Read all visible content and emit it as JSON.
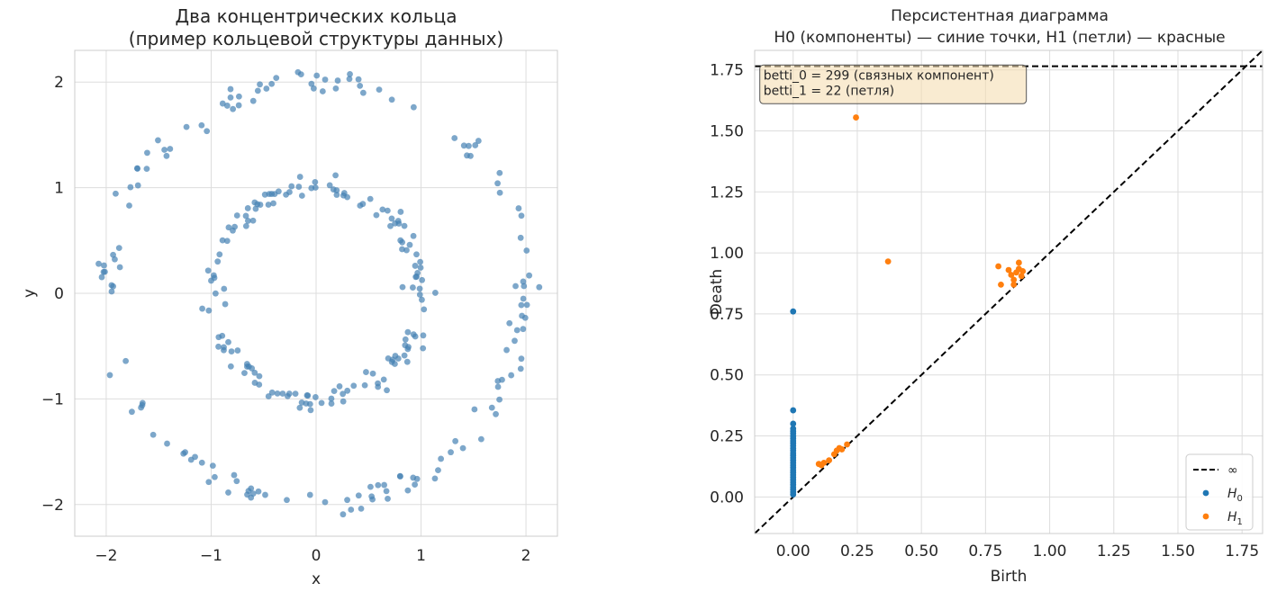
{
  "chart_data": [
    {
      "type": "scatter",
      "title": "Два концентрических кольца\n(пример кольцевой структуры данных)",
      "xlabel": "x",
      "ylabel": "y",
      "xlim": [
        -2.3,
        2.3
      ],
      "ylim": [
        -2.3,
        2.3
      ],
      "xticks": [
        -2,
        -1,
        0,
        1,
        2
      ],
      "yticks": [
        -2,
        -1,
        0,
        1,
        2
      ],
      "xtick_labels": [
        "−2",
        "−1",
        "0",
        "1",
        "2"
      ],
      "ytick_labels": [
        "−2",
        "−1",
        "0",
        "1",
        "2"
      ],
      "grid": true,
      "point_color": "#4682b4",
      "rings": [
        {
          "radius": 2.0,
          "approx_points": 150,
          "noise": 0.06
        },
        {
          "radius": 1.0,
          "approx_points": 150,
          "noise": 0.05
        }
      ]
    },
    {
      "type": "scatter",
      "title": "Персистентная диаграмма\nH0 (компоненты) — синие точки, H1 (петли) — красные",
      "xlabel": "Birth",
      "ylabel": "Death",
      "xlim": [
        -0.15,
        1.83
      ],
      "ylim": [
        -0.15,
        1.83
      ],
      "xticks": [
        0.0,
        0.25,
        0.5,
        0.75,
        1.0,
        1.25,
        1.5,
        1.75
      ],
      "yticks": [
        0.0,
        0.25,
        0.5,
        0.75,
        1.0,
        1.25,
        1.5,
        1.75
      ],
      "xtick_labels": [
        "0.00",
        "0.25",
        "0.50",
        "0.75",
        "1.00",
        "1.25",
        "1.50",
        "1.75"
      ],
      "ytick_labels": [
        "0.00",
        "0.25",
        "0.50",
        "0.75",
        "1.00",
        "1.25",
        "1.50",
        "1.75"
      ],
      "grid": true,
      "infinity_death": 1.765,
      "annotation": "betti_0 = 299 (связных компонент)\nbetti_1 = 22 (петля)",
      "legend": {
        "position": "lower-right",
        "entries": [
          {
            "label": "∞",
            "kind": "line",
            "color": "#000000"
          },
          {
            "label": "H0",
            "kind": "point",
            "color": "#1f77b4"
          },
          {
            "label": "H1",
            "kind": "point",
            "color": "#ff7f0e"
          }
        ]
      },
      "series": [
        {
          "name": "H0",
          "color": "#1f77b4",
          "points": [
            [
              0,
              0.76
            ],
            [
              0,
              0.355
            ],
            [
              0,
              0.3
            ],
            [
              0,
              0.28
            ],
            [
              0,
              0.27
            ],
            [
              0,
              0.26
            ],
            [
              0,
              0.25
            ],
            [
              0,
              0.24
            ],
            [
              0,
              0.23
            ],
            [
              0,
              0.22
            ],
            [
              0,
              0.21
            ],
            [
              0,
              0.2
            ],
            [
              0,
              0.19
            ],
            [
              0,
              0.18
            ],
            [
              0,
              0.17
            ],
            [
              0,
              0.16
            ],
            [
              0,
              0.15
            ],
            [
              0,
              0.14
            ],
            [
              0,
              0.13
            ],
            [
              0,
              0.12
            ],
            [
              0,
              0.11
            ],
            [
              0,
              0.1
            ],
            [
              0,
              0.09
            ],
            [
              0,
              0.08
            ],
            [
              0,
              0.07
            ],
            [
              0,
              0.06
            ],
            [
              0,
              0.05
            ],
            [
              0,
              0.04
            ],
            [
              0,
              0.03
            ],
            [
              0,
              0.02
            ],
            [
              0,
              0.01
            ]
          ]
        },
        {
          "name": "H1",
          "color": "#ff7f0e",
          "points": [
            [
              0.245,
              1.555
            ],
            [
              0.37,
              0.965
            ],
            [
              0.8,
              0.945
            ],
            [
              0.81,
              0.87
            ],
            [
              0.84,
              0.93
            ],
            [
              0.85,
              0.91
            ],
            [
              0.86,
              0.89
            ],
            [
              0.86,
              0.87
            ],
            [
              0.87,
              0.92
            ],
            [
              0.88,
              0.935
            ],
            [
              0.88,
              0.96
            ],
            [
              0.89,
              0.905
            ],
            [
              0.895,
              0.925
            ],
            [
              0.1,
              0.135
            ],
            [
              0.12,
              0.14
            ],
            [
              0.14,
              0.15
            ],
            [
              0.16,
              0.175
            ],
            [
              0.17,
              0.19
            ],
            [
              0.18,
              0.2
            ],
            [
              0.21,
              0.215
            ],
            [
              0.11,
              0.13
            ],
            [
              0.19,
              0.195
            ]
          ]
        }
      ]
    }
  ]
}
